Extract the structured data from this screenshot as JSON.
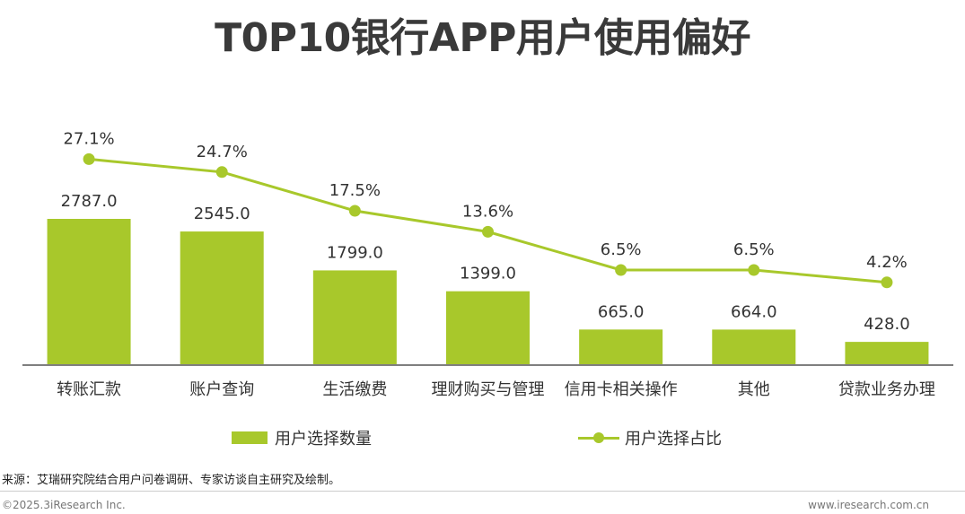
{
  "title": "T0P10银行APP用户使用偏好",
  "colors": {
    "bar": "#a8c82b",
    "line": "#a8c82b",
    "axis": "#555555",
    "text": "#333333"
  },
  "legend": {
    "bar_label": "用户选择数量",
    "line_label": "用户选择占比"
  },
  "source": "来源：艾瑞研究院结合用户问卷调研、专家访谈自主研究及绘制。",
  "footer": {
    "copyright": "©2025.3iResearch Inc.",
    "website": "www.iresearch.com.cn"
  },
  "chart_data": {
    "type": "bar",
    "title": "T0P10银行APP用户使用偏好",
    "categories": [
      "转账汇款",
      "账户查询",
      "生活缴费",
      "理财购买与管理",
      "信用卡相关操作",
      "其他",
      "贷款业务办理"
    ],
    "series": [
      {
        "name": "用户选择数量",
        "type": "bar",
        "values": [
          2787.0,
          2545.0,
          1799.0,
          1399.0,
          665.0,
          664.0,
          428.0
        ],
        "labels": [
          "2787.0",
          "2545.0",
          "1799.0",
          "1399.0",
          "665.0",
          "664.0",
          "428.0"
        ]
      },
      {
        "name": "用户选择占比",
        "type": "line",
        "values": [
          27.1,
          24.7,
          17.5,
          13.6,
          6.5,
          6.5,
          4.2
        ],
        "labels": [
          "27.1%",
          "24.7%",
          "17.5%",
          "13.6%",
          "6.5%",
          "6.5%",
          "4.2%"
        ]
      }
    ],
    "legend_position": "bottom",
    "grid": false
  }
}
